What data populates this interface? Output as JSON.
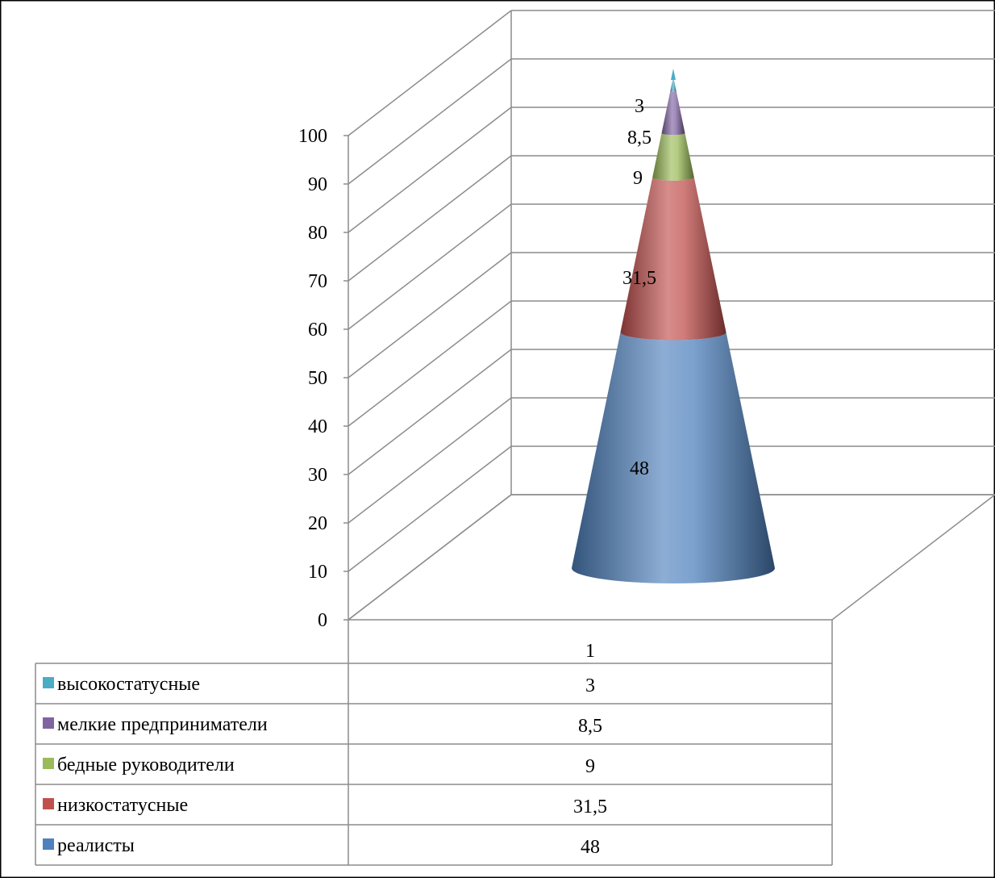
{
  "chart_data": {
    "type": "bar",
    "style": "3d-stacked-cone",
    "categories": [
      "1"
    ],
    "series": [
      {
        "name": "реалисты",
        "values": [
          48
        ],
        "label": "48",
        "color": "#4f81bd"
      },
      {
        "name": "низкостатусные",
        "values": [
          31.5
        ],
        "label": "31,5",
        "color": "#c0504d"
      },
      {
        "name": "бедные руководители",
        "values": [
          9
        ],
        "label": "9",
        "color": "#9bbb59"
      },
      {
        "name": "мелкие предприниматели",
        "values": [
          8.5
        ],
        "label": "8,5",
        "color": "#8064a2"
      },
      {
        "name": "высокостатусные",
        "values": [
          3
        ],
        "label": "3",
        "color": "#4bacc6"
      }
    ],
    "ylim": [
      0,
      100
    ],
    "yticks": [
      "0",
      "10",
      "20",
      "30",
      "40",
      "50",
      "60",
      "70",
      "80",
      "90",
      "100"
    ],
    "grid": true,
    "legend": "data-table-bottom",
    "data_table": {
      "header": "1",
      "rows": [
        {
          "name": "высокостатусные",
          "value": "3",
          "color": "#4bacc6"
        },
        {
          "name": "мелкие предприниматели",
          "value": "8,5",
          "color": "#8064a2"
        },
        {
          "name": "бедные руководители",
          "value": "9",
          "color": "#9bbb59"
        },
        {
          "name": "низкостатусные",
          "value": "31,5",
          "color": "#c0504d"
        },
        {
          "name": "реалисты",
          "value": "48",
          "color": "#4f81bd"
        }
      ]
    }
  }
}
